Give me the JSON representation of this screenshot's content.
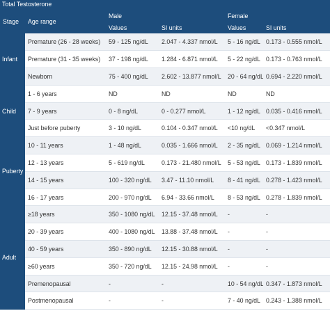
{
  "title": "Total Testosterone",
  "header": {
    "groups": [
      "Male",
      "Female"
    ],
    "columns": [
      "Stage",
      "Age range",
      "Values",
      "SI units",
      "Values",
      "SI units"
    ]
  },
  "groups": [
    {
      "stage": "Infant",
      "rows": [
        [
          "Premature (26 - 28 weeks)",
          "59 - 125 ng/dL",
          "2.047 - 4.337 nmol/L",
          "5 - 16 ng/dL",
          "0.173 - 0.555 nmol/L"
        ],
        [
          "Premature (31 - 35 weeks)",
          "37 - 198 ng/dL",
          "1.284 - 6.871 nmol/L",
          "5 - 22 ng/dL",
          "0.173 - 0.763 nmol/L"
        ],
        [
          "Newborn",
          "75 - 400 ng/dL",
          "2.602 - 13.877 nmol/L",
          "20 - 64 ng/dL",
          "0.694 - 2.220 nmol/L"
        ]
      ]
    },
    {
      "stage": "Child",
      "rows": [
        [
          "1 - 6 years",
          "ND",
          "ND",
          "ND",
          "ND"
        ],
        [
          "7 - 9 years",
          "0 - 8 ng/dL",
          "0 - 0.277 nmol/L",
          "1 - 12 ng/dL",
          "0.035 - 0.416 nmol/L"
        ],
        [
          "Just before puberty",
          "3 - 10 ng/dL",
          "0.104 - 0.347 nmol/L",
          "<10 ng/dL",
          "<0.347 nmol/L"
        ]
      ]
    },
    {
      "stage": "Puberty",
      "rows": [
        [
          "10 - 11 years",
          "1 - 48 ng/dL",
          "0.035 - 1.666 nmol/L",
          "2 - 35 ng/dL",
          "0.069 - 1.214 nmol/L"
        ],
        [
          "12 - 13 years",
          "5 - 619 ng/dL",
          "0.173 - 21.480 nmol/L",
          "5 - 53 ng/dL",
          "0.173 - 1.839 nmol/L"
        ],
        [
          "14 - 15 years",
          "100 - 320 ng/dL",
          "3.47 - 11.10 nmol/L",
          "8 - 41 ng/dL",
          "0.278 - 1.423 nmol/L"
        ],
        [
          "16 - 17 years",
          "200 - 970 ng/dL",
          "6.94 - 33.66 nmol/L",
          "8 - 53 ng/dL",
          "0.278 - 1.839 nmol/L"
        ]
      ]
    },
    {
      "stage": "Adult",
      "rows": [
        [
          "≥18 years",
          "350 - 1080 ng/dL",
          "12.15 - 37.48 nmol/L",
          "-",
          "-"
        ],
        [
          "20 - 39 years",
          "400 - 1080 ng/dL",
          "13.88 - 37.48 nmol/L",
          "-",
          "-"
        ],
        [
          "40 - 59 years",
          "350 - 890 ng/dL",
          "12.15 - 30.88 nmol/L",
          "-",
          "-"
        ],
        [
          "≥60 years",
          "350 - 720 ng/dL",
          "12.15 - 24.98 nmol/L",
          "-",
          "-"
        ],
        [
          "Premenopausal",
          "-",
          "-",
          "10 - 54 ng/dL",
          "0.347 - 1.873 nmol/L"
        ],
        [
          "Postmenopausal",
          "-",
          "-",
          "7 - 40 ng/dL",
          "0.243 - 1.388 nmol/L"
        ]
      ]
    }
  ]
}
